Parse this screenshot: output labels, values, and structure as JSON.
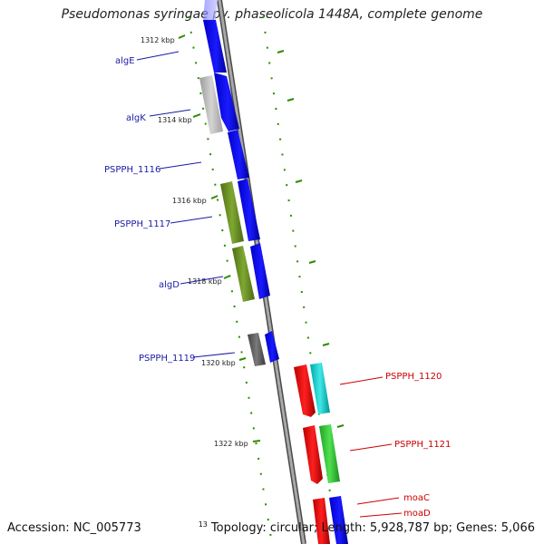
{
  "title": "Pseudomonas syringae pv. phaseolicola 1448A, complete genome",
  "footer": {
    "accession": "Accession: NC_005773",
    "clipped_label": "13",
    "topology": "Topology: circular; Length: 5,928,787 bp; Genes: 5,066"
  },
  "colors": {
    "backbone": "#8c8c8c",
    "tick": "#2e8b00",
    "forward_label": "#1a1aa8",
    "reverse_label": "#cc0000"
  },
  "kbp_labels": [
    "1312 kbp",
    "1314 kbp",
    "1316 kbp",
    "1318 kbp",
    "1320 kbp",
    "1322 kbp"
  ],
  "genes": [
    {
      "label": "algE",
      "strand": "forward",
      "label_color": "#1a1aa8"
    },
    {
      "label": "algK",
      "strand": "forward",
      "label_color": "#1a1aa8"
    },
    {
      "label": "PSPPH_1116",
      "strand": "forward",
      "label_color": "#1a1aa8"
    },
    {
      "label": "PSPPH_1117",
      "strand": "forward",
      "label_color": "#1a1aa8"
    },
    {
      "label": "algD",
      "strand": "forward",
      "label_color": "#1a1aa8"
    },
    {
      "label": "PSPPH_1119",
      "strand": "forward",
      "label_color": "#1a1aa8"
    },
    {
      "label": "PSPPH_1120",
      "strand": "reverse",
      "label_color": "#cc0000"
    },
    {
      "label": "PSPPH_1121",
      "strand": "reverse",
      "label_color": "#cc0000"
    },
    {
      "label": "moaC",
      "strand": "reverse",
      "label_color": "#cc0000"
    },
    {
      "label": "moaD",
      "strand": "reverse",
      "label_color": "#cc0000"
    }
  ]
}
